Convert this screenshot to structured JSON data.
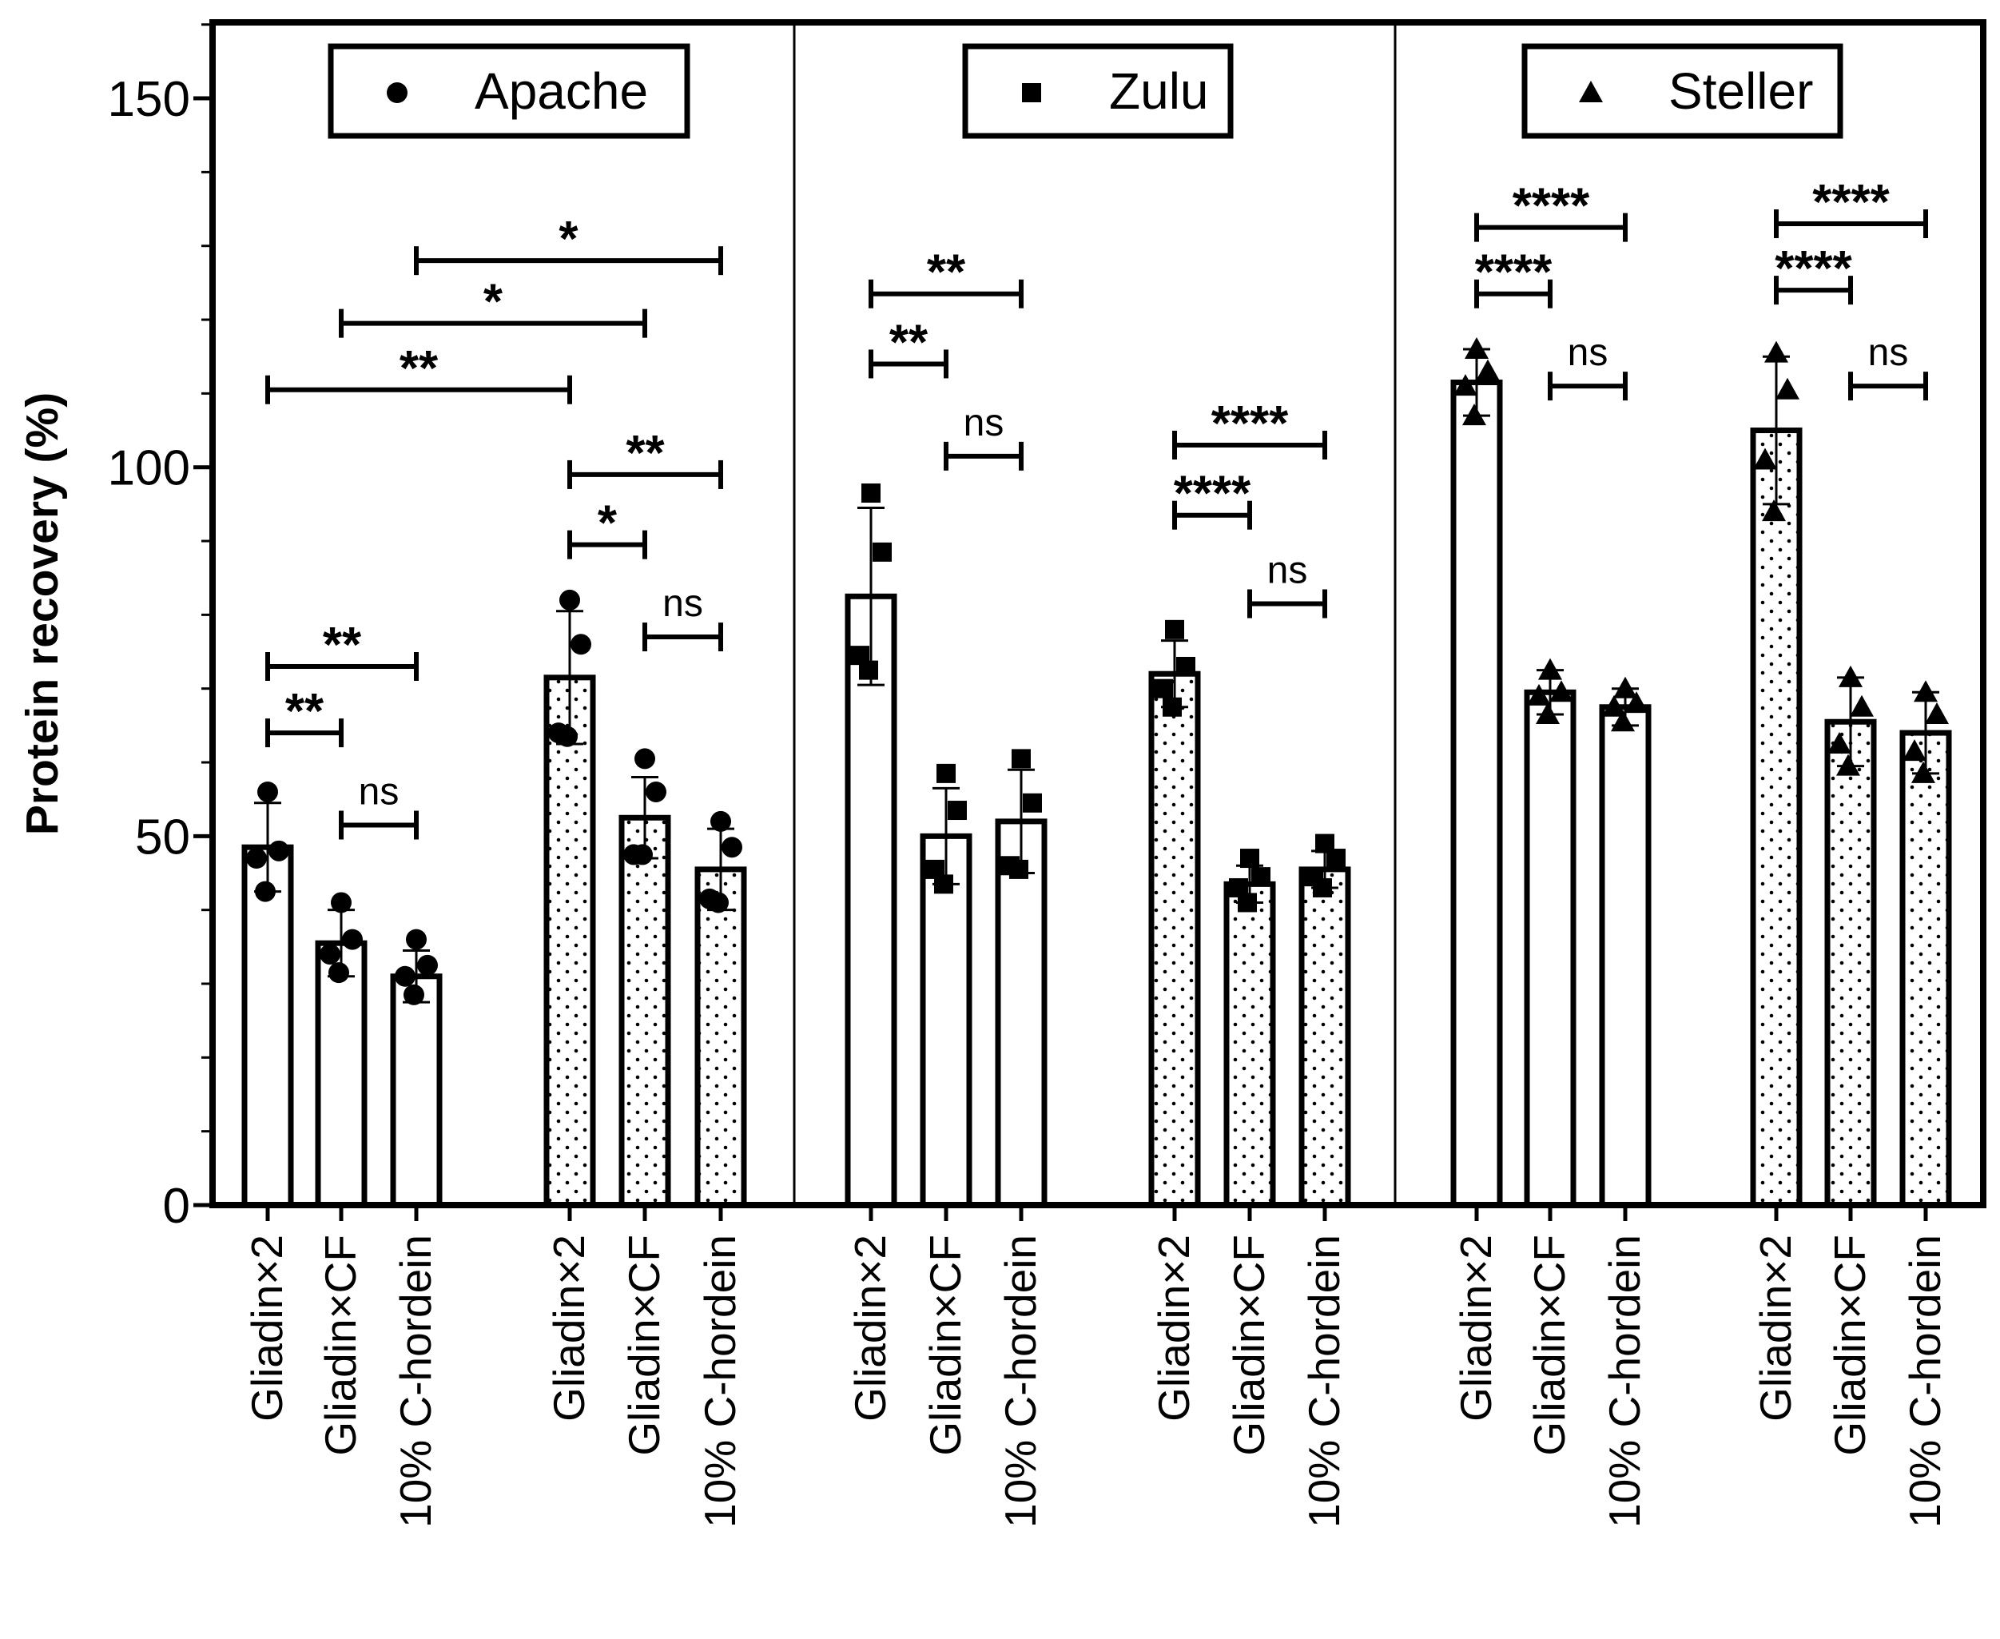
{
  "chart_data": {
    "type": "bar",
    "ylabel": "Protein recovery (%)",
    "ylim": [
      0,
      160
    ],
    "yticks": [
      0,
      50,
      100,
      150
    ],
    "categories": [
      "Gliadin×2",
      "Gliadin×CF",
      "10% C-hordein"
    ],
    "panels": [
      {
        "legend": "Apache",
        "marker": "circle",
        "groups": [
          {
            "pattern": "plain",
            "bars": [
              {
                "category": "Gliadin×2",
                "mean": 48.5,
                "sd": 6,
                "points": [
                  56,
                  48,
                  47,
                  42.5
                ]
              },
              {
                "category": "Gliadin×CF",
                "mean": 35.5,
                "sd": 4.5,
                "points": [
                  41,
                  36,
                  34,
                  31.5
                ]
              },
              {
                "category": "10% C-hordein",
                "mean": 31,
                "sd": 3.5,
                "points": [
                  36,
                  32.5,
                  31,
                  28.5
                ]
              }
            ]
          },
          {
            "pattern": "dotted",
            "bars": [
              {
                "category": "Gliadin×2",
                "mean": 71.5,
                "sd": 9,
                "points": [
                  82,
                  76,
                  64,
                  63.5
                ]
              },
              {
                "category": "Gliadin×CF",
                "mean": 52.5,
                "sd": 5.5,
                "points": [
                  60.5,
                  56,
                  47.5,
                  47.5
                ]
              },
              {
                "category": "10% C-hordein",
                "mean": 45.5,
                "sd": 5.5,
                "points": [
                  52,
                  48.5,
                  41.5,
                  41
                ]
              }
            ]
          }
        ]
      },
      {
        "legend": "Zulu",
        "marker": "square",
        "groups": [
          {
            "pattern": "plain",
            "bars": [
              {
                "category": "Gliadin×2",
                "mean": 82.5,
                "sd": 12,
                "points": [
                  96.5,
                  88.5,
                  74.5,
                  72.5
                ]
              },
              {
                "category": "Gliadin×CF",
                "mean": 50,
                "sd": 6.5,
                "points": [
                  58.5,
                  53.5,
                  45.5,
                  43.5
                ]
              },
              {
                "category": "10% C-hordein",
                "mean": 52,
                "sd": 7,
                "points": [
                  60.5,
                  54.5,
                  46,
                  45.5
                ]
              }
            ]
          },
          {
            "pattern": "dotted",
            "bars": [
              {
                "category": "Gliadin×2",
                "mean": 72,
                "sd": 4.5,
                "points": [
                  78,
                  73,
                  70,
                  67.5
                ]
              },
              {
                "category": "Gliadin×CF",
                "mean": 43.5,
                "sd": 2.5,
                "points": [
                  47,
                  44.5,
                  43,
                  41
                ]
              },
              {
                "category": "10% C-hordein",
                "mean": 45.5,
                "sd": 2.5,
                "points": [
                  49,
                  47,
                  44.5,
                  43
                ]
              }
            ]
          }
        ]
      },
      {
        "legend": "Steller",
        "marker": "triangle",
        "groups": [
          {
            "pattern": "plain",
            "bars": [
              {
                "category": "Gliadin×2",
                "mean": 111.5,
                "sd": 4.5,
                "points": [
                  116,
                  113,
                  111,
                  107
                ]
              },
              {
                "category": "Gliadin×CF",
                "mean": 69.5,
                "sd": 3,
                "points": [
                  72.5,
                  69.5,
                  69,
                  66.5
                ]
              },
              {
                "category": "10% C-hordein",
                "mean": 67.5,
                "sd": 2.5,
                "points": [
                  70,
                  68,
                  67.5,
                  65.5
                ]
              }
            ]
          },
          {
            "pattern": "dotted",
            "bars": [
              {
                "category": "Gliadin×2",
                "mean": 105,
                "sd": 10,
                "points": [
                  115.5,
                  110.5,
                  101,
                  94
                ]
              },
              {
                "category": "Gliadin×CF",
                "mean": 65.5,
                "sd": 6,
                "points": [
                  71.5,
                  67.5,
                  62.5,
                  59.5
                ]
              },
              {
                "category": "10% C-hordein",
                "mean": 64,
                "sd": 5.5,
                "points": [
                  69.5,
                  66.5,
                  61.5,
                  58.5
                ]
              }
            ]
          }
        ]
      }
    ],
    "significance": [
      {
        "from": 0,
        "to": 1,
        "y": 64,
        "label": "**"
      },
      {
        "from": 0,
        "to": 2,
        "y": 73,
        "label": "**"
      },
      {
        "from": 1,
        "to": 2,
        "y": 51.5,
        "label": "ns"
      },
      {
        "from": 3,
        "to": 4,
        "y": 89.5,
        "label": "*"
      },
      {
        "from": 3,
        "to": 5,
        "y": 99,
        "label": "**"
      },
      {
        "from": 4,
        "to": 5,
        "y": 77,
        "label": "ns"
      },
      {
        "from": 0,
        "to": 3,
        "y": 110.5,
        "label": "**"
      },
      {
        "from": 1,
        "to": 4,
        "y": 119.5,
        "label": "*"
      },
      {
        "from": 2,
        "to": 5,
        "y": 128,
        "label": "*"
      },
      {
        "from": 6,
        "to": 7,
        "y": 114,
        "label": "**"
      },
      {
        "from": 6,
        "to": 8,
        "y": 123.5,
        "label": "**"
      },
      {
        "from": 7,
        "to": 8,
        "y": 101.5,
        "label": "ns"
      },
      {
        "from": 9,
        "to": 10,
        "y": 93.5,
        "label": "****"
      },
      {
        "from": 9,
        "to": 11,
        "y": 103,
        "label": "****"
      },
      {
        "from": 10,
        "to": 11,
        "y": 81.5,
        "label": "ns"
      },
      {
        "from": 12,
        "to": 13,
        "y": 123.5,
        "label": "****"
      },
      {
        "from": 12,
        "to": 14,
        "y": 132.5,
        "label": "****"
      },
      {
        "from": 13,
        "to": 14,
        "y": 111,
        "label": "ns"
      },
      {
        "from": 15,
        "to": 16,
        "y": 124,
        "label": "****"
      },
      {
        "from": 15,
        "to": 17,
        "y": 133,
        "label": "****"
      },
      {
        "from": 16,
        "to": 17,
        "y": 111,
        "label": "ns"
      }
    ]
  }
}
